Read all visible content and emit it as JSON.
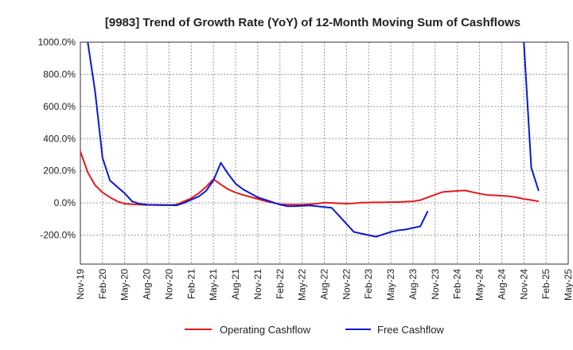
{
  "chart_data": {
    "type": "line",
    "title": "[9983]  Trend of Growth Rate (YoY) of 12-Month Moving Sum of Cashflows",
    "xlabel": "",
    "ylabel": "",
    "ylim": [
      -380,
      1000
    ],
    "y_ticks": [
      "1000.0%",
      "800.0%",
      "600.0%",
      "400.0%",
      "200.0%",
      "0.0%",
      "-200.0%"
    ],
    "y_tick_values": [
      1000,
      800,
      600,
      400,
      200,
      0,
      -200
    ],
    "x_tick_labels": [
      "Nov-19",
      "Feb-20",
      "May-20",
      "Aug-20",
      "Nov-20",
      "Feb-21",
      "May-21",
      "Aug-21",
      "Nov-21",
      "Feb-22",
      "May-22",
      "Aug-22",
      "Nov-22",
      "Feb-23",
      "May-23",
      "Aug-23",
      "Nov-23",
      "Feb-24",
      "May-24",
      "Aug-24",
      "Nov-24",
      "Feb-25",
      "May-25"
    ],
    "x_months": [
      "Nov-19",
      "Dec-19",
      "Jan-20",
      "Feb-20",
      "Mar-20",
      "Apr-20",
      "May-20",
      "Jun-20",
      "Jul-20",
      "Aug-20",
      "Sep-20",
      "Oct-20",
      "Nov-20",
      "Dec-20",
      "Jan-21",
      "Feb-21",
      "Mar-21",
      "Apr-21",
      "May-21",
      "Jun-21",
      "Jul-21",
      "Aug-21",
      "Sep-21",
      "Oct-21",
      "Nov-21",
      "Dec-21",
      "Jan-22",
      "Feb-22",
      "Mar-22",
      "Apr-22",
      "May-22",
      "Jun-22",
      "Jul-22",
      "Aug-22",
      "Sep-22",
      "Oct-22",
      "Nov-22",
      "Dec-22",
      "Jan-23",
      "Feb-23",
      "Mar-23",
      "Apr-23",
      "May-23",
      "Jun-23",
      "Jul-23",
      "Aug-23",
      "Sep-23",
      "Oct-23",
      "Nov-23",
      "Dec-23",
      "Jan-24",
      "Feb-24",
      "Mar-24",
      "Apr-24",
      "May-24",
      "Jun-24",
      "Jul-24",
      "Aug-24",
      "Sep-24",
      "Oct-24",
      "Nov-24",
      "Dec-24",
      "Jan-25",
      "Feb-25",
      "Mar-25",
      "Apr-25",
      "May-25"
    ],
    "grid": true,
    "legend_position": "bottom-center",
    "series": [
      {
        "name": "Operating Cashflow",
        "color": "#e31a1c",
        "values": [
          320,
          190,
          110,
          65,
          35,
          10,
          -5,
          -8,
          -10,
          -12,
          -12,
          -13,
          -14,
          -10,
          10,
          30,
          60,
          100,
          148,
          115,
          85,
          65,
          50,
          38,
          25,
          12,
          2,
          -8,
          -10,
          -10,
          -10,
          -8,
          -4,
          2,
          0,
          -2,
          -4,
          -2,
          2,
          3,
          4,
          4,
          5,
          6,
          8,
          10,
          18,
          35,
          52,
          68,
          72,
          75,
          78,
          68,
          58,
          50,
          48,
          45,
          42,
          35,
          25,
          18,
          10,
          null,
          null,
          null,
          null
        ]
      },
      {
        "name": "Free Cashflow",
        "color": "#0a1acf",
        "values": [
          null,
          1000,
          690,
          280,
          140,
          100,
          60,
          10,
          -5,
          -10,
          -12,
          -13,
          -13,
          -15,
          0,
          20,
          40,
          75,
          140,
          250,
          180,
          120,
          85,
          60,
          35,
          20,
          5,
          -10,
          -20,
          -20,
          -18,
          -15,
          -20,
          -25,
          -30,
          -80,
          -130,
          -180,
          -190,
          -200,
          -210,
          -195,
          -180,
          -170,
          -165,
          -155,
          -145,
          -50,
          null,
          null,
          null,
          null,
          null,
          null,
          null,
          null,
          null,
          null,
          null,
          null,
          1000,
          220,
          75,
          null,
          null,
          null,
          null
        ]
      }
    ]
  }
}
